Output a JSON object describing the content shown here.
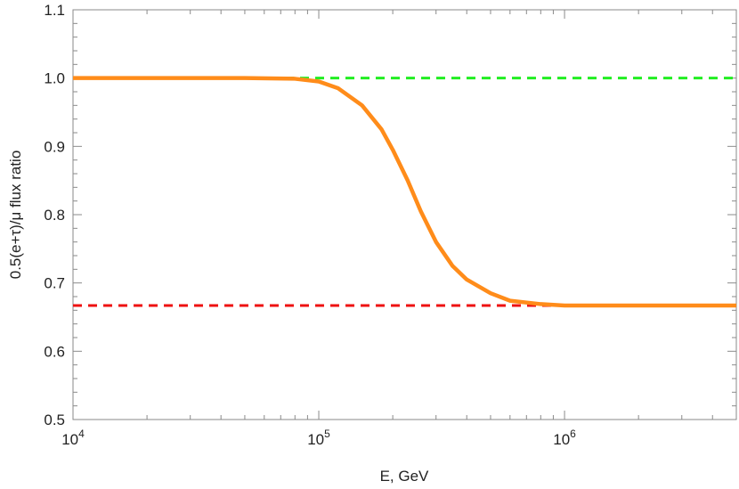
{
  "chart_data": {
    "type": "line",
    "title": "",
    "xlabel": "E, GeV",
    "ylabel": "0.5(e+τ)/μ flux ratio",
    "xscale": "log",
    "xlim": [
      10000,
      5000000
    ],
    "ylim": [
      0.5,
      1.1
    ],
    "grid": false,
    "x_ticks": [
      {
        "base": "10",
        "exp": "4",
        "value": 10000
      },
      {
        "base": "10",
        "exp": "5",
        "value": 100000
      },
      {
        "base": "10",
        "exp": "6",
        "value": 1000000
      }
    ],
    "y_ticks": [
      {
        "label": "0.5",
        "value": 0.5
      },
      {
        "label": "0.6",
        "value": 0.6
      },
      {
        "label": "0.7",
        "value": 0.7
      },
      {
        "label": "0.8",
        "value": 0.8
      },
      {
        "label": "0.9",
        "value": 0.9
      },
      {
        "label": "1.0",
        "value": 1.0
      },
      {
        "label": "1.1",
        "value": 1.1
      }
    ],
    "series": [
      {
        "style": "solid",
        "color": "#ff8c1a",
        "x": [
          10000,
          50000,
          80000,
          100000,
          120000,
          150000,
          180000,
          200000,
          230000,
          260000,
          300000,
          350000,
          400000,
          500000,
          600000,
          800000,
          1000000,
          2000000,
          5000000
        ],
        "y": [
          1.0,
          1.0,
          0.999,
          0.995,
          0.985,
          0.96,
          0.925,
          0.895,
          0.85,
          0.805,
          0.76,
          0.725,
          0.705,
          0.685,
          0.674,
          0.669,
          0.667,
          0.667,
          0.667
        ]
      },
      {
        "style": "dashed",
        "color": "#22ee22",
        "x": [
          10000,
          5000000
        ],
        "y": [
          1.0,
          1.0
        ]
      },
      {
        "style": "dashed",
        "color": "#ee1111",
        "x": [
          10000,
          5000000
        ],
        "y": [
          0.667,
          0.667
        ]
      }
    ]
  }
}
